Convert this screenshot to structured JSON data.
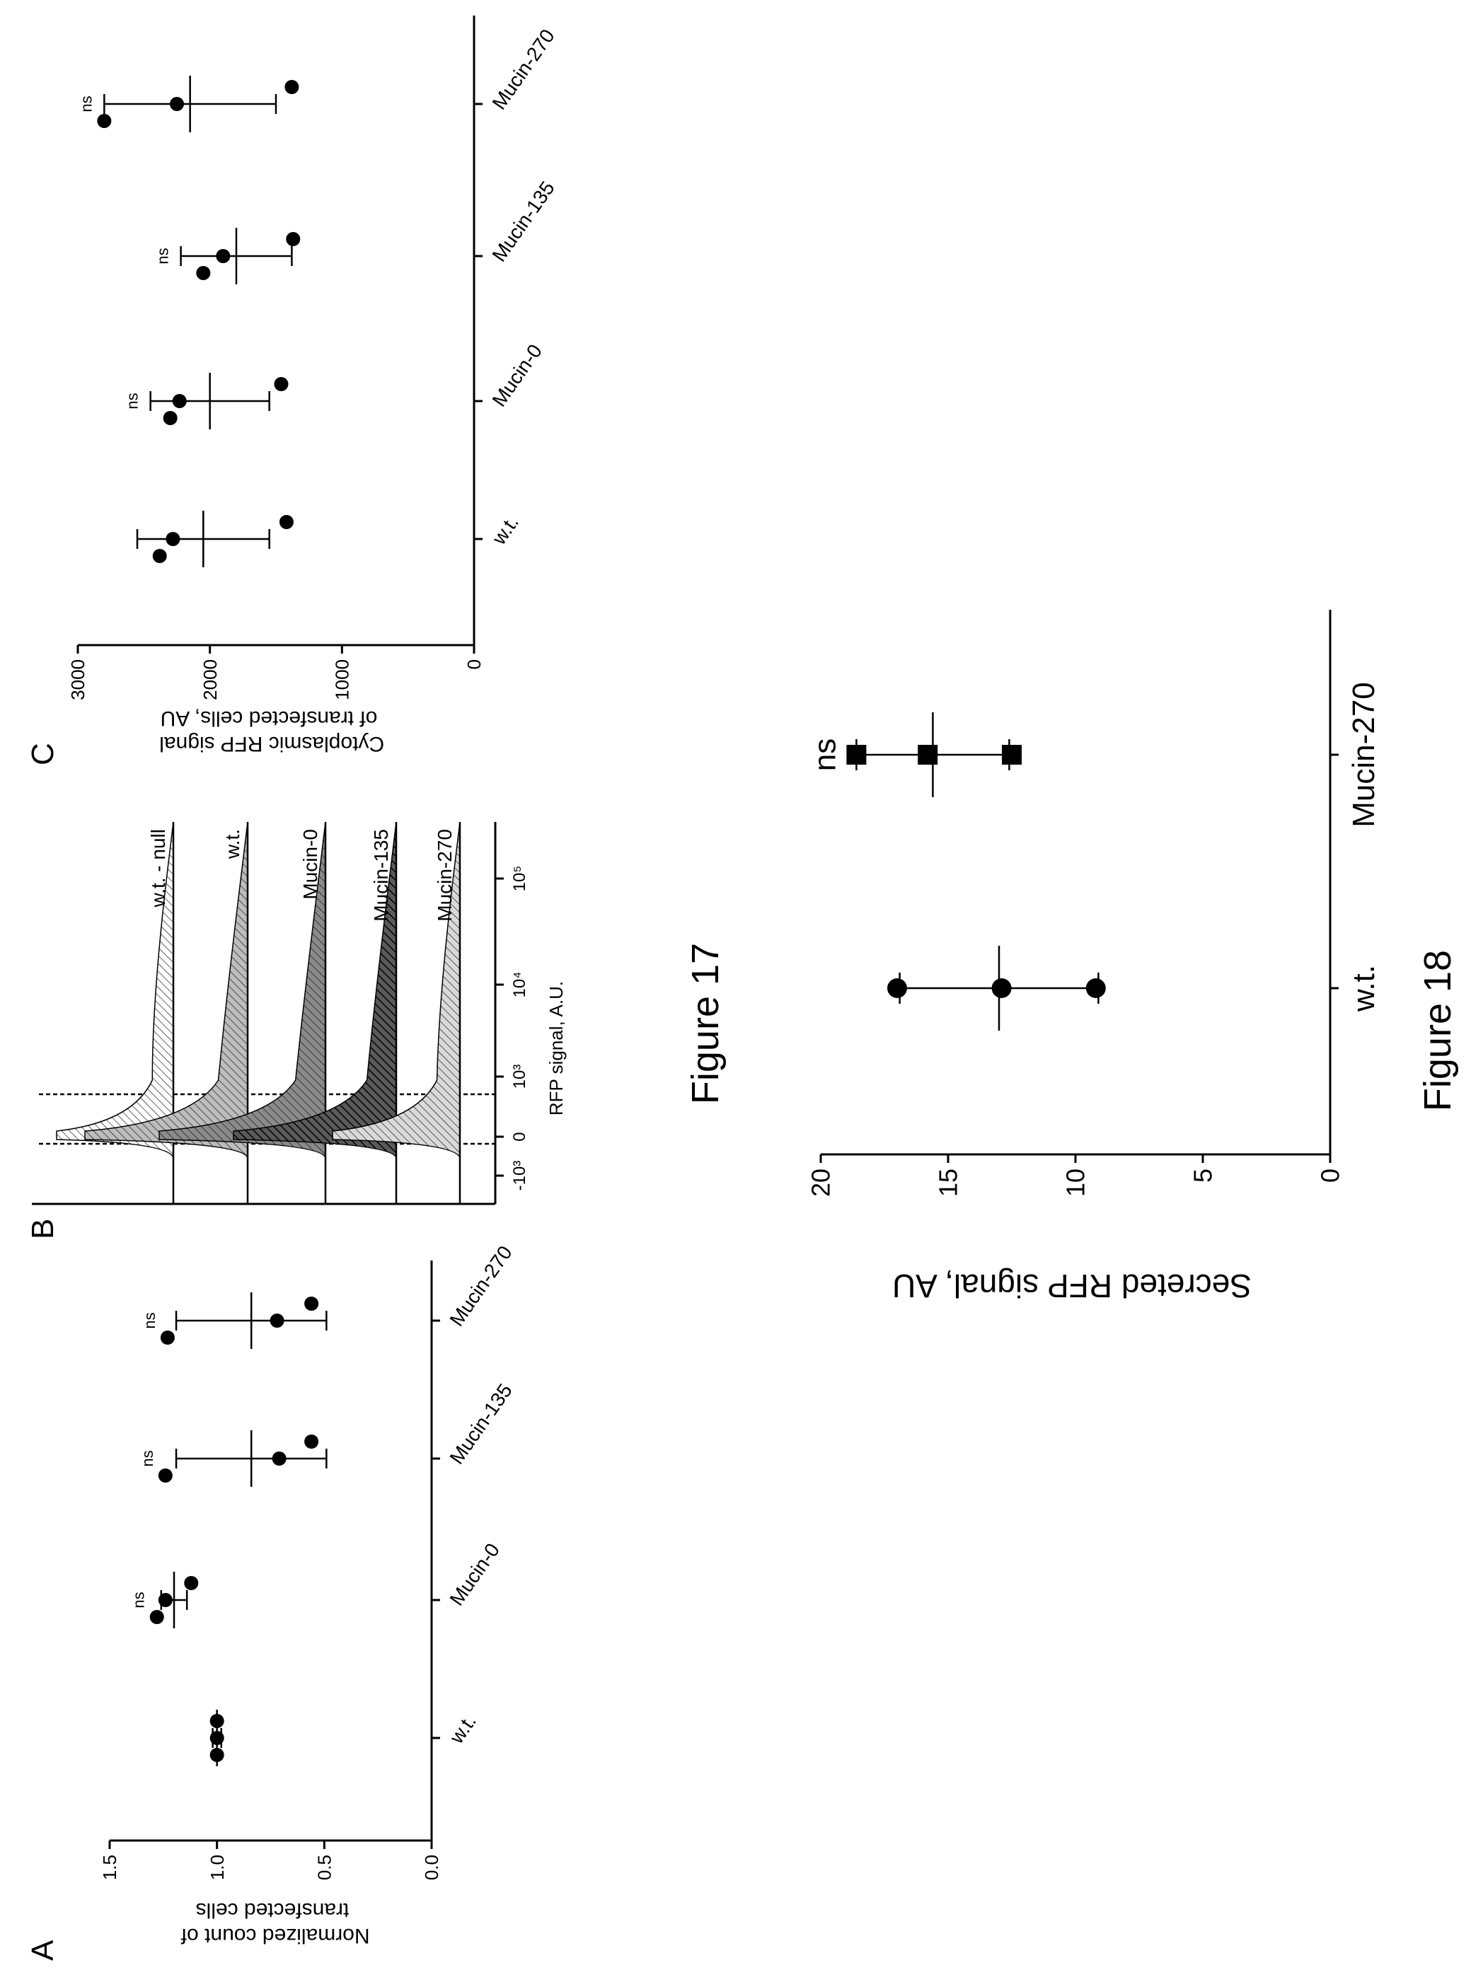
{
  "chart_data": [
    {
      "panel_label": "A",
      "type": "scatter",
      "ylabel": "Normalized count of transfected cells",
      "categories": [
        "w.t.",
        "Mucin-0",
        "Mucin-135",
        "Mucin-270"
      ],
      "yticks": [
        "0.0",
        "0.5",
        "1.0",
        "1.5"
      ],
      "ylim": [
        0,
        1.5
      ],
      "points": [
        [
          1.0,
          1.0,
          1.0
        ],
        [
          1.28,
          1.24,
          1.12
        ],
        [
          1.24,
          0.71,
          0.56
        ],
        [
          1.23,
          0.72,
          0.56
        ]
      ],
      "means": [
        1.0,
        1.2,
        0.84,
        0.84
      ],
      "errors": [
        0.02,
        0.06,
        0.35,
        0.35
      ],
      "annotations": [
        "",
        "ns",
        "ns",
        "ns"
      ]
    },
    {
      "panel_label": "B",
      "type": "area",
      "xlabel": "RFP signal, A.U.",
      "xtick_labels": [
        "-10³",
        "0",
        "10³",
        "10⁴",
        "10⁵"
      ],
      "series": [
        {
          "name": "Mucin-270",
          "color": "#d9d9d9"
        },
        {
          "name": "Mucin-135",
          "color": "#5a5a5a"
        },
        {
          "name": "Mucin-0",
          "color": "#8a8a8a"
        },
        {
          "name": "w.t.",
          "color": "#bdbdbd"
        },
        {
          "name": "w.t. - null",
          "color": "#ffffff"
        }
      ]
    },
    {
      "panel_label": "C",
      "type": "scatter",
      "ylabel": "Cytoplasmic RFP signal of transfected cells, AU",
      "categories": [
        "w.t.",
        "Mucin-0",
        "Mucin-135",
        "Mucin-270"
      ],
      "yticks": [
        "0",
        "1000",
        "2000",
        "3000"
      ],
      "ylim": [
        0,
        3000
      ],
      "points": [
        [
          2380,
          2280,
          1420
        ],
        [
          2300,
          2230,
          1460
        ],
        [
          2050,
          1900,
          1370
        ],
        [
          2800,
          2250,
          1380
        ]
      ],
      "means": [
        2050,
        2000,
        1800,
        2150
      ],
      "errors": [
        500,
        450,
        420,
        650
      ],
      "annotations": [
        "",
        "ns",
        "ns",
        "ns"
      ]
    },
    {
      "panel_label": "",
      "type": "scatter",
      "ylabel": "Secreted RFP signal,  AU",
      "categories": [
        "w.t.",
        "Mucin-270"
      ],
      "yticks": [
        "0",
        "5",
        "10",
        "15",
        "20"
      ],
      "ylim": [
        0,
        20
      ],
      "points": [
        [
          17.0,
          12.9,
          9.2
        ],
        [
          18.6,
          15.8,
          12.5
        ]
      ],
      "means": [
        13.0,
        15.6
      ],
      "errors": [
        3.9,
        3.0
      ],
      "markers": [
        "circle",
        "square"
      ],
      "annotations": [
        "",
        "ns"
      ]
    }
  ],
  "figure_captions": [
    "Figure 17",
    "Figure 18"
  ]
}
